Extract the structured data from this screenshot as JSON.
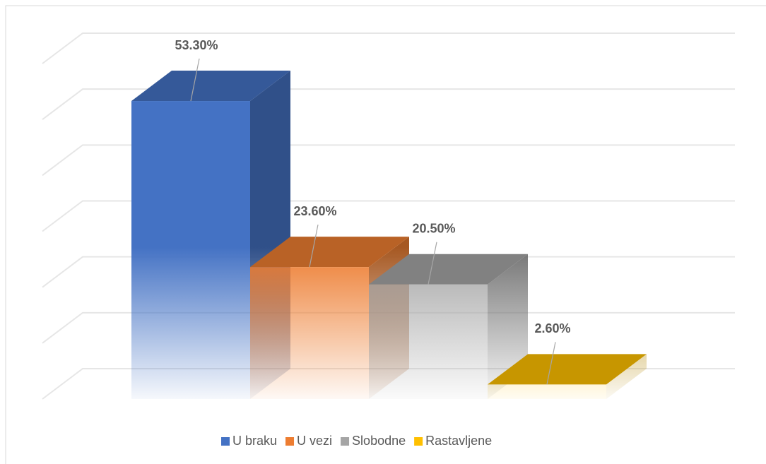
{
  "chart_data": {
    "type": "bar3d",
    "categories": [
      ""
    ],
    "series": [
      {
        "name": "U braku",
        "color": "#4472c4",
        "values": [
          53.3
        ],
        "value_labels": [
          "53.30%"
        ]
      },
      {
        "name": "U vezi",
        "color": "#ed7d31",
        "values": [
          23.6
        ],
        "value_labels": [
          "23.60%"
        ]
      },
      {
        "name": "Slobodne",
        "color": "#a5a5a5",
        "values": [
          20.5
        ],
        "value_labels": [
          "20.50%"
        ]
      },
      {
        "name": "Rastavljene",
        "color": "#ffc000",
        "values": [
          2.6
        ],
        "value_labels": [
          "2.60%"
        ]
      }
    ],
    "ylim": [
      0,
      60
    ],
    "yticks": [
      0,
      10,
      20,
      30,
      40,
      50,
      60
    ],
    "grid": true,
    "legend": "bottom"
  }
}
